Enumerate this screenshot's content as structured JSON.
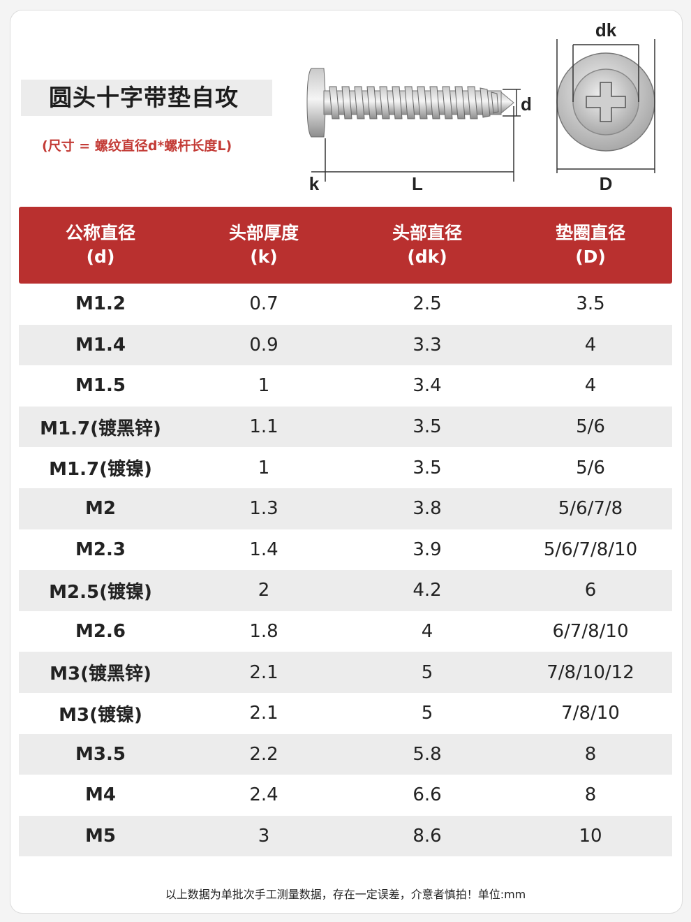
{
  "title": "圆头十字带垫自攻",
  "subtitle": "(尺寸 = 螺纹直径d*螺杆长度L)",
  "diagram": {
    "k": "k",
    "L": "L",
    "d": "d",
    "dk": "dk",
    "D": "D"
  },
  "table": {
    "headers": [
      {
        "line1": "公称直径",
        "line2": "(d)"
      },
      {
        "line1": "头部厚度",
        "line2": "(k)"
      },
      {
        "line1": "头部直径",
        "line2": "(dk)"
      },
      {
        "line1": "垫圈直径",
        "line2": "(D)"
      }
    ],
    "rows": [
      [
        "M1.2",
        "0.7",
        "2.5",
        "3.5"
      ],
      [
        "M1.4",
        "0.9",
        "3.3",
        "4"
      ],
      [
        "M1.5",
        "1",
        "3.4",
        "4"
      ],
      [
        "M1.7(镀黑锌)",
        "1.1",
        "3.5",
        "5/6"
      ],
      [
        "M1.7(镀镍)",
        "1",
        "3.5",
        "5/6"
      ],
      [
        "M2",
        "1.3",
        "3.8",
        "5/6/7/8"
      ],
      [
        "M2.3",
        "1.4",
        "3.9",
        "5/6/7/8/10"
      ],
      [
        "M2.5(镀镍)",
        "2",
        "4.2",
        "6"
      ],
      [
        "M2.6",
        "1.8",
        "4",
        "6/7/8/10"
      ],
      [
        "M3(镀黑锌)",
        "2.1",
        "5",
        "7/8/10/12"
      ],
      [
        "M3(镀镍)",
        "2.1",
        "5",
        "7/8/10"
      ],
      [
        "M3.5",
        "2.2",
        "5.8",
        "8"
      ],
      [
        "M4",
        "2.4",
        "6.6",
        "8"
      ],
      [
        "M5",
        "3",
        "8.6",
        "10"
      ]
    ]
  },
  "footer": "以上数据为单批次手工测量数据，存在一定误差，介意者慎拍！单位:mm",
  "colors": {
    "header_bg": "#b9302f",
    "subtitle": "#c33b36",
    "row_alt": "#ececec"
  }
}
